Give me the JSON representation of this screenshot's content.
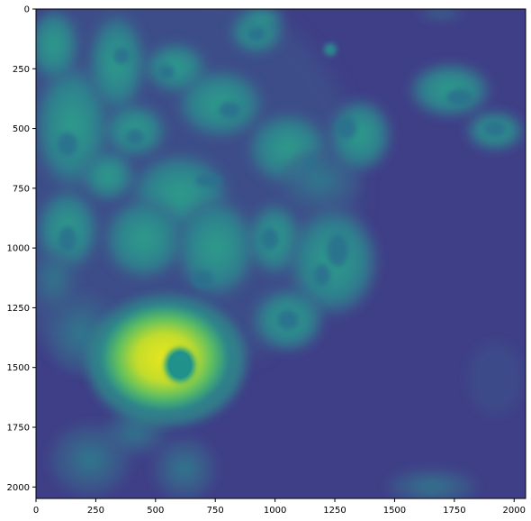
{
  "figure": {
    "image_kind": "fluorescence micrograph",
    "colormap": "viridis",
    "background_color": "#3f3f87",
    "low_color": "#3b3f86",
    "mid_color": "#2e8d8c",
    "high_color": "#e9e61f",
    "x_ticks": [
      {
        "value": 0,
        "label": "0"
      },
      {
        "value": 250,
        "label": "250"
      },
      {
        "value": 500,
        "label": "500"
      },
      {
        "value": 750,
        "label": "750"
      },
      {
        "value": 1000,
        "label": "1000"
      },
      {
        "value": 1250,
        "label": "1250"
      },
      {
        "value": 1500,
        "label": "1500"
      },
      {
        "value": 1750,
        "label": "1750"
      },
      {
        "value": 2000,
        "label": "2000"
      }
    ],
    "y_ticks": [
      {
        "value": 0,
        "label": "0"
      },
      {
        "value": 250,
        "label": "250"
      },
      {
        "value": 500,
        "label": "500"
      },
      {
        "value": 750,
        "label": "750"
      },
      {
        "value": 1000,
        "label": "1000"
      },
      {
        "value": 1250,
        "label": "1250"
      },
      {
        "value": 1500,
        "label": "1500"
      },
      {
        "value": 1750,
        "label": "1750"
      },
      {
        "value": 2000,
        "label": "2000"
      }
    ],
    "x_range": [
      0,
      2048
    ],
    "y_range": [
      0,
      2048
    ]
  }
}
